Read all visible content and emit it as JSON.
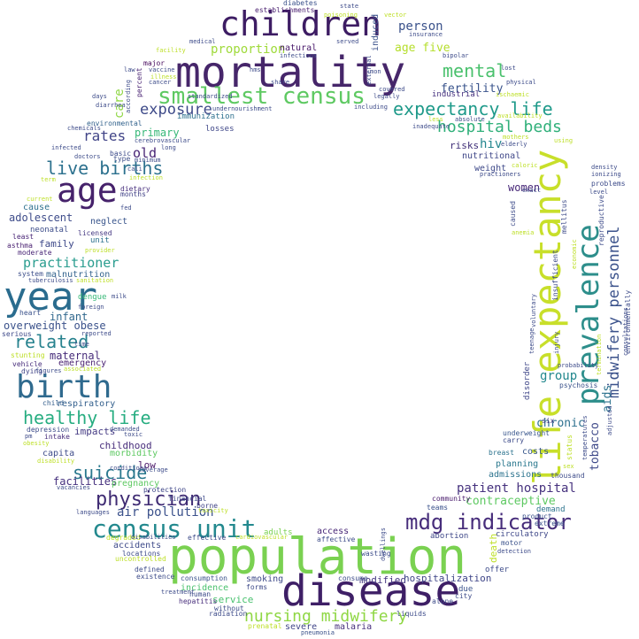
{
  "cloud": {
    "words": [
      {
        "text": "mortality",
        "color": "#46266a"
      },
      {
        "text": "population",
        "color": "#7ad151"
      },
      {
        "text": "life expectancy",
        "color": "#c8df2a"
      },
      {
        "text": "prevalence",
        "color": "#2d8e8b"
      },
      {
        "text": "disease",
        "color": "#3e1f66"
      },
      {
        "text": "children",
        "color": "#3d1c63"
      },
      {
        "text": "year",
        "color": "#2a6c8e"
      },
      {
        "text": "birth",
        "color": "#2f6a8e"
      },
      {
        "text": "age",
        "color": "#46226b"
      },
      {
        "text": "census unit",
        "color": "#23898e"
      },
      {
        "text": "smallest census",
        "color": "#5ec962"
      },
      {
        "text": "expectancy life",
        "color": "#1f9a8a"
      },
      {
        "text": "mdg indicator",
        "color": "#472d7b"
      },
      {
        "text": "hospital beds",
        "color": "#30b07a"
      },
      {
        "text": "midwifery personnel",
        "color": "#3b528b"
      },
      {
        "text": "physician",
        "color": "#3f2b73"
      },
      {
        "text": "live births",
        "color": "#2c718e"
      },
      {
        "text": "healthy life",
        "color": "#27ad81"
      },
      {
        "text": "suicide",
        "color": "#2a788e"
      },
      {
        "text": "related",
        "color": "#27828e"
      },
      {
        "text": "nursing midwifery",
        "color": "#8fd744"
      },
      {
        "text": "mental",
        "color": "#4ac16d"
      },
      {
        "text": "exposure",
        "color": "#3e4a89"
      },
      {
        "text": "rates",
        "color": "#414487"
      },
      {
        "text": "practitioner",
        "color": "#2a9d8f"
      },
      {
        "text": "air pollution",
        "color": "#3b518b"
      },
      {
        "text": "patient hospital",
        "color": "#46327e"
      },
      {
        "text": "contraceptive",
        "color": "#5ec962"
      },
      {
        "text": "adolescent",
        "color": "#3e4c8a"
      },
      {
        "text": "proportion",
        "color": "#9fda3a"
      },
      {
        "text": "fertility",
        "color": "#3a548c"
      },
      {
        "text": "person",
        "color": "#3b528b"
      },
      {
        "text": "age five",
        "color": "#b5de2b"
      },
      {
        "text": "primary",
        "color": "#37b878"
      },
      {
        "text": "care",
        "color": "#8fd744"
      },
      {
        "text": "old",
        "color": "#482475"
      },
      {
        "text": "hiv",
        "color": "#24868e"
      },
      {
        "text": "risks",
        "color": "#3f2e78"
      },
      {
        "text": "chronic",
        "color": "#2d708e"
      },
      {
        "text": "group",
        "color": "#23888e"
      },
      {
        "text": "aids",
        "color": "#2c728e"
      },
      {
        "text": "tobacco",
        "color": "#3e4989"
      },
      {
        "text": "women",
        "color": "#482878"
      },
      {
        "text": "overweight obese",
        "color": "#3b528b"
      },
      {
        "text": "infant",
        "color": "#31688e"
      },
      {
        "text": "maternal",
        "color": "#472c7a"
      },
      {
        "text": "emergency",
        "color": "#481f70"
      },
      {
        "text": "respiratory",
        "color": "#34608d"
      },
      {
        "text": "childhood",
        "color": "#472d7b"
      },
      {
        "text": "facilities",
        "color": "#46307e"
      },
      {
        "text": "impacts",
        "color": "#443a83"
      },
      {
        "text": "capita",
        "color": "#3e4c8a"
      },
      {
        "text": "low",
        "color": "#481467"
      },
      {
        "text": "family",
        "color": "#3e4989"
      },
      {
        "text": "malnutrition",
        "color": "#33638d"
      },
      {
        "text": "cause",
        "color": "#2d718e"
      },
      {
        "text": "neglect",
        "color": "#39558c"
      },
      {
        "text": "neonatal",
        "color": "#3d4d8a"
      },
      {
        "text": "unit",
        "color": "#2c728e"
      },
      {
        "text": "dengue",
        "color": "#37b878"
      },
      {
        "text": "access",
        "color": "#482677"
      },
      {
        "text": "modified",
        "color": "#453781"
      },
      {
        "text": "hospitalization",
        "color": "#404688"
      },
      {
        "text": "service",
        "color": "#48c16e"
      },
      {
        "text": "smoking",
        "color": "#3e4a89"
      },
      {
        "text": "incidence",
        "color": "#4ac16d"
      },
      {
        "text": "malaria",
        "color": "#462f7c"
      },
      {
        "text": "severe",
        "color": "#404588"
      },
      {
        "text": "adults",
        "color": "#7ad151"
      },
      {
        "text": "abortion",
        "color": "#3f4889"
      },
      {
        "text": "circulatory",
        "color": "#3f4889"
      },
      {
        "text": "death",
        "color": "#bddf26"
      },
      {
        "text": "admissions",
        "color": "#2c738e"
      },
      {
        "text": "planning",
        "color": "#2a788e"
      },
      {
        "text": "costs",
        "color": "#38588c"
      },
      {
        "text": "weight",
        "color": "#3e4989"
      },
      {
        "text": "nutritional",
        "color": "#3f4788"
      },
      {
        "text": "industrial",
        "color": "#46307e"
      },
      {
        "text": "immunization",
        "color": "#2d708e"
      },
      {
        "text": "losses",
        "color": "#3f4788"
      },
      {
        "text": "natural",
        "color": "#48186a"
      },
      {
        "text": "induced",
        "color": "#3b528b"
      },
      {
        "text": "establishments",
        "color": "#481d6f"
      },
      {
        "text": "diabetes",
        "color": "#3b528b"
      },
      {
        "text": "major",
        "color": "#46085c"
      },
      {
        "text": "percent",
        "color": "#482172"
      },
      {
        "text": "environmental",
        "color": "#33638d"
      },
      {
        "text": "basic",
        "color": "#3e4c8a"
      },
      {
        "text": "type",
        "color": "#3d4e8a"
      },
      {
        "text": "dietary",
        "color": "#472f7d"
      },
      {
        "text": "months",
        "color": "#414287"
      },
      {
        "text": "licensed",
        "color": "#453882"
      },
      {
        "text": "least",
        "color": "#482475"
      },
      {
        "text": "asthma",
        "color": "#481f70"
      },
      {
        "text": "moderate",
        "color": "#482475"
      },
      {
        "text": "system",
        "color": "#3d4e8a"
      },
      {
        "text": "heart",
        "color": "#3b528b"
      },
      {
        "text": "serious",
        "color": "#3e4989"
      },
      {
        "text": "vehicle",
        "color": "#472d7b"
      },
      {
        "text": "dying",
        "color": "#414487"
      },
      {
        "text": "child",
        "color": "#355f8d"
      },
      {
        "text": "depression",
        "color": "#3e4c8a"
      },
      {
        "text": "intake",
        "color": "#472d7b"
      },
      {
        "text": "underweight",
        "color": "#39568c"
      },
      {
        "text": "carry",
        "color": "#3e4c8a"
      },
      {
        "text": "breast",
        "color": "#2c738e"
      },
      {
        "text": "six",
        "color": "#443983"
      },
      {
        "text": "psychosis",
        "color": "#3b528b"
      },
      {
        "text": "disorder",
        "color": "#3f4788"
      },
      {
        "text": "demand",
        "color": "#2c738e"
      },
      {
        "text": "teams",
        "color": "#3b528b"
      },
      {
        "text": "community",
        "color": "#481a6c"
      },
      {
        "text": "wasting",
        "color": "#3d4d8a"
      },
      {
        "text": "financial",
        "color": "#3e4a89"
      },
      {
        "text": "borne",
        "color": "#414487"
      },
      {
        "text": "protection",
        "color": "#3f4788"
      },
      {
        "text": "accidents",
        "color": "#3e4a89"
      },
      {
        "text": "locations",
        "color": "#3e4c8a"
      },
      {
        "text": "consumption",
        "color": "#3b528b"
      },
      {
        "text": "consume",
        "color": "#3e4c8a"
      },
      {
        "text": "alone",
        "color": "#3e4c8a"
      },
      {
        "text": "due",
        "color": "#3b528b"
      },
      {
        "text": "offer",
        "color": "#3e4c8a"
      },
      {
        "text": "motor",
        "color": "#3b528b"
      },
      {
        "text": "extreme",
        "color": "#3b528b"
      },
      {
        "text": "product",
        "color": "#3b528b"
      },
      {
        "text": "forms",
        "color": "#3e4a89"
      },
      {
        "text": "hepatitis",
        "color": "#472d7b"
      },
      {
        "text": "human",
        "color": "#3e4c8a"
      },
      {
        "text": "radiation",
        "color": "#3e4c8a"
      },
      {
        "text": "pneumonia",
        "color": "#3b528b"
      },
      {
        "text": "prenatal",
        "color": "#bddf26"
      },
      {
        "text": "liquids",
        "color": "#3e4c8a"
      },
      {
        "text": "city",
        "color": "#3e4c8a"
      },
      {
        "text": "without",
        "color": "#3e4c8a"
      },
      {
        "text": "defined",
        "color": "#3e4c8a"
      },
      {
        "text": "existence",
        "color": "#3e4c8a"
      },
      {
        "text": "treatment",
        "color": "#3e4c8a"
      },
      {
        "text": "effective",
        "color": "#3e4c8a"
      },
      {
        "text": "degraded",
        "color": "#bddf26"
      },
      {
        "text": "disabilities",
        "color": "#3e4c8a"
      },
      {
        "text": "uncontrolled",
        "color": "#bddf26"
      },
      {
        "text": "cardiovascular",
        "color": "#bddf26"
      },
      {
        "text": "affective",
        "color": "#3e4c8a"
      },
      {
        "text": "languages",
        "color": "#3e4c8a"
      },
      {
        "text": "vacancies",
        "color": "#3e4c8a"
      },
      {
        "text": "disability",
        "color": "#bddf26"
      },
      {
        "text": "obesity",
        "color": "#bddf26"
      },
      {
        "text": "morbidity",
        "color": "#5ec962"
      },
      {
        "text": "pregnancy",
        "color": "#5ec962"
      },
      {
        "text": "toxicity",
        "color": "#bddf26"
      },
      {
        "text": "conditions",
        "color": "#3e4c8a"
      },
      {
        "text": "coverage",
        "color": "#3e4c8a"
      },
      {
        "text": "stunting",
        "color": "#bddf26"
      },
      {
        "text": "figures",
        "color": "#3e4c8a"
      },
      {
        "text": "associated",
        "color": "#bddf26"
      },
      {
        "text": "demanded",
        "color": "#3e4c8a"
      },
      {
        "text": "toxic",
        "color": "#3e4c8a"
      },
      {
        "text": "pm",
        "color": "#3e4c8a"
      },
      {
        "text": "reported",
        "color": "#3e4c8a"
      },
      {
        "text": "time",
        "color": "#3e4c8a"
      },
      {
        "text": "foreign",
        "color": "#3e4c8a"
      },
      {
        "text": "milk",
        "color": "#3e4c8a"
      },
      {
        "text": "provider",
        "color": "#bddf26"
      },
      {
        "text": "tuberculosis",
        "color": "#3e4c8a"
      },
      {
        "text": "sanitation",
        "color": "#bddf26"
      },
      {
        "text": "standardized",
        "color": "#3e4c8a"
      },
      {
        "text": "long",
        "color": "#3e4c8a"
      },
      {
        "text": "cali",
        "color": "#3e4c8a"
      },
      {
        "text": "minimum",
        "color": "#3e4c8a"
      },
      {
        "text": "infection",
        "color": "#bddf26"
      },
      {
        "text": "fed",
        "color": "#3e4c8a"
      },
      {
        "text": "current",
        "color": "#bddf26"
      },
      {
        "text": "term",
        "color": "#bddf26"
      },
      {
        "text": "infected",
        "color": "#3e4c8a"
      },
      {
        "text": "doctors",
        "color": "#3e4c8a"
      },
      {
        "text": "chemicals",
        "color": "#3e4c8a"
      },
      {
        "text": "according",
        "color": "#3e4c8a"
      },
      {
        "text": "cerebrovascular",
        "color": "#3e4c8a"
      },
      {
        "text": "days",
        "color": "#3e4c8a"
      },
      {
        "text": "diarrhea",
        "color": "#3e4c8a"
      },
      {
        "text": "undernourishment",
        "color": "#3e4c8a"
      },
      {
        "text": "vaccine",
        "color": "#3e4c8a"
      },
      {
        "text": "illness",
        "color": "#bddf26"
      },
      {
        "text": "cancer",
        "color": "#3e4c8a"
      },
      {
        "text": "hms",
        "color": "#3e4c8a"
      },
      {
        "text": "law",
        "color": "#3e4c8a"
      },
      {
        "text": "medical",
        "color": "#3e4c8a"
      },
      {
        "text": "facility",
        "color": "#bddf26"
      },
      {
        "text": "served",
        "color": "#3e4c8a"
      },
      {
        "text": "poisoning",
        "color": "#bddf26"
      },
      {
        "text": "infectious",
        "color": "#3e4c8a"
      },
      {
        "text": "share",
        "color": "#3e4c8a"
      },
      {
        "text": "external",
        "color": "#3e4c8a"
      },
      {
        "text": "state",
        "color": "#3e4c8a"
      },
      {
        "text": "vector",
        "color": "#bddf26"
      },
      {
        "text": "insurance",
        "color": "#3e4c8a"
      },
      {
        "text": "bipolar",
        "color": "#3e4c8a"
      },
      {
        "text": "lost",
        "color": "#3e4c8a"
      },
      {
        "text": "physical",
        "color": "#3e4c8a"
      },
      {
        "text": "ischaemic",
        "color": "#bddf26"
      },
      {
        "text": "availability",
        "color": "#bddf26"
      },
      {
        "text": "mon",
        "color": "#3e4c8a"
      },
      {
        "text": "covered",
        "color": "#3e4c8a"
      },
      {
        "text": "legally",
        "color": "#3e4c8a"
      },
      {
        "text": "including",
        "color": "#3e4c8a"
      },
      {
        "text": "absolute",
        "color": "#3e4c8a"
      },
      {
        "text": "inadequate",
        "color": "#3e4c8a"
      },
      {
        "text": "less",
        "color": "#bddf26"
      },
      {
        "text": "mothers",
        "color": "#bddf26"
      },
      {
        "text": "elderly",
        "color": "#3e4c8a"
      },
      {
        "text": "using",
        "color": "#bddf26"
      },
      {
        "text": "caloric",
        "color": "#bddf26"
      },
      {
        "text": "density",
        "color": "#3e4c8a"
      },
      {
        "text": "ionizing",
        "color": "#3e4c8a"
      },
      {
        "text": "exact",
        "color": "#3e4c8a"
      },
      {
        "text": "practioners",
        "color": "#3e4c8a"
      },
      {
        "text": "problems",
        "color": "#3e4c8a"
      },
      {
        "text": "level",
        "color": "#3e4c8a"
      },
      {
        "text": "caused",
        "color": "#3e4c8a"
      },
      {
        "text": "mellitus",
        "color": "#3e4c8a"
      },
      {
        "text": "anemia",
        "color": "#bddf26"
      },
      {
        "text": "economic",
        "color": "#bddf26"
      },
      {
        "text": "insufficient",
        "color": "#3e4c8a"
      },
      {
        "text": "reproductive",
        "color": "#3e4c8a"
      },
      {
        "text": "environmentally",
        "color": "#3e4c8a"
      },
      {
        "text": "consultations",
        "color": "#3e4c8a"
      },
      {
        "text": "voluntary",
        "color": "#3e4c8a"
      },
      {
        "text": "teenage",
        "color": "#3e4c8a"
      },
      {
        "text": "injury",
        "color": "#3e4c8a"
      },
      {
        "text": "probability",
        "color": "#3e4c8a"
      },
      {
        "text": "termination",
        "color": "#bddf26"
      },
      {
        "text": "status",
        "color": "#bddf26"
      },
      {
        "text": "adjusted",
        "color": "#3e4c8a"
      },
      {
        "text": "temperatures",
        "color": "#3e4c8a"
      },
      {
        "text": "thousand",
        "color": "#3e4c8a"
      },
      {
        "text": "sex",
        "color": "#bddf26"
      },
      {
        "text": "detection",
        "color": "#3e4c8a"
      },
      {
        "text": "dwellings",
        "color": "#3e4c8a"
      }
    ]
  }
}
